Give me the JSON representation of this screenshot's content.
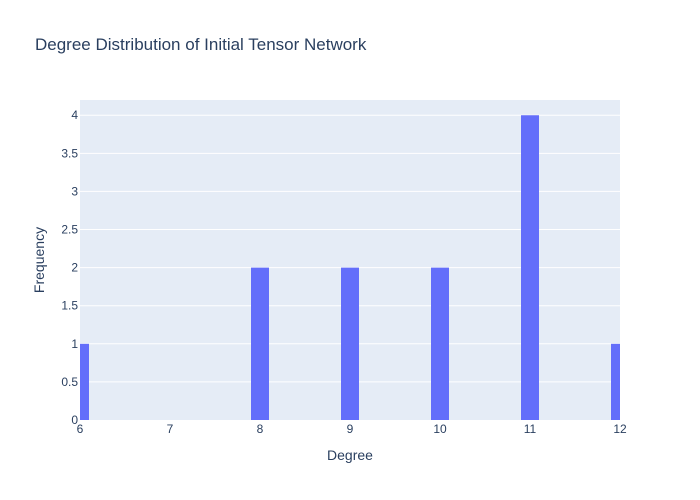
{
  "chart_data": {
    "type": "bar",
    "title": "Degree Distribution of Initial Tensor Network",
    "xlabel": "Degree",
    "ylabel": "Frequency",
    "x": [
      6,
      8,
      9,
      10,
      11,
      12
    ],
    "values": [
      1,
      2,
      2,
      2,
      4,
      1
    ],
    "xlim": [
      6,
      12
    ],
    "ylim": [
      0,
      4.2
    ],
    "xticks": [
      6,
      7,
      8,
      9,
      10,
      11,
      12
    ],
    "yticks": [
      0,
      0.5,
      1,
      1.5,
      2,
      2.5,
      3,
      3.5,
      4
    ],
    "bar_width": 0.2,
    "grid": true,
    "colors": {
      "bar": "#636efa",
      "plot_background": "#e5ecf6",
      "grid": "#ffffff",
      "text": "#2a3f5f"
    }
  }
}
